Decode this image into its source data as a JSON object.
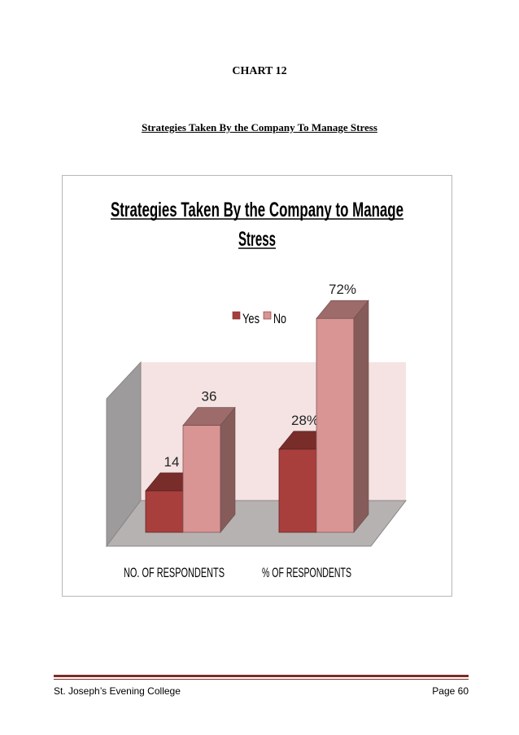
{
  "document": {
    "heading": "CHART 12",
    "subheading": "Strategies Taken By the Company To Manage Stress"
  },
  "footer": {
    "left": "St. Joseph’s Evening College",
    "right": "Page 60"
  },
  "colors": {
    "yes": "#a83f3c",
    "no": "#d89593",
    "back_wall": "#f5e3e3",
    "side_wall": "#9d9b9b",
    "floor": "#b7b2b2",
    "footer_rule": "#7b2c25"
  },
  "chart_data": {
    "type": "bar",
    "title_line1": "Strategies Taken  By the Company to Manage",
    "title_line2": "Stress",
    "legend_position": "top",
    "categories": [
      "NO. OF RESPONDENTS",
      "% OF RESPONDENTS"
    ],
    "series": [
      {
        "name": "Yes",
        "values": [
          14,
          28
        ],
        "labels": [
          "14",
          "28%"
        ]
      },
      {
        "name": "No",
        "values": [
          36,
          72
        ],
        "labels": [
          "36",
          "72%"
        ]
      }
    ],
    "ylim": [
      0,
      80
    ],
    "grid": false,
    "three_d": true
  }
}
